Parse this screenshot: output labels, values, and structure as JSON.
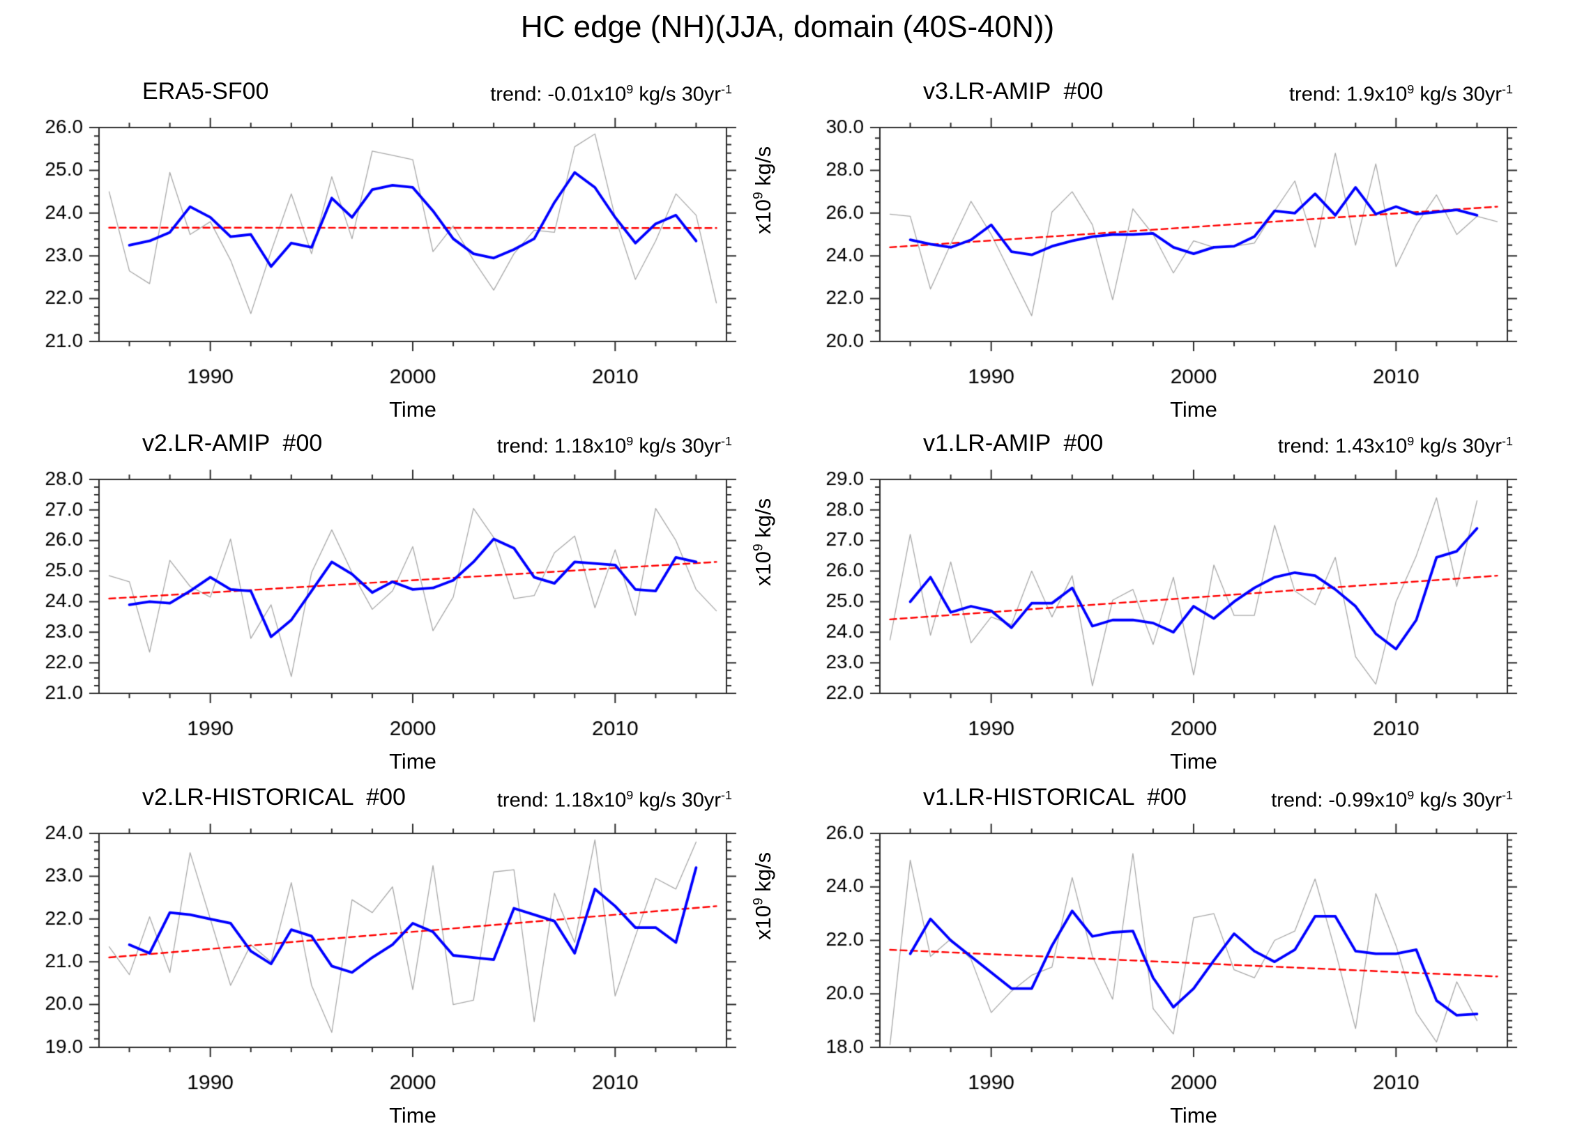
{
  "figure": {
    "title": "HC edge (NH)(JJA, domain (40S-40N))"
  },
  "colors": {
    "raw_line": "#a9a9a9",
    "smooth_line": "#0000ff",
    "trend_line": "#ff0000",
    "axis": "#2b2b2b",
    "text": "#000000",
    "background": "#ffffff"
  },
  "axis_shared": {
    "xlabel": "Time",
    "ylabel_parts": [
      {
        "t": "x10"
      },
      {
        "t": "9",
        "sup": true
      },
      {
        "t": " kg/s"
      }
    ],
    "xlim": [
      1984.5,
      2015.5
    ],
    "xticks": [
      1990,
      2000,
      2010
    ],
    "xtick_labels": [
      "1990",
      "2000",
      "2010"
    ],
    "xminor_step_years": 2
  },
  "years": [
    1985,
    1986,
    1987,
    1988,
    1989,
    1990,
    1991,
    1992,
    1993,
    1994,
    1995,
    1996,
    1997,
    1998,
    1999,
    2000,
    2001,
    2002,
    2003,
    2004,
    2005,
    2006,
    2007,
    2008,
    2009,
    2010,
    2011,
    2012,
    2013,
    2014,
    2015
  ],
  "chart_data": [
    {
      "type": "line",
      "title": "ERA5-SF00",
      "trend_value": "-0.01",
      "trend_parts": [
        {
          "t": "trend: -0.01x10"
        },
        {
          "t": "9",
          "sup": true
        },
        {
          "t": " kg/s 30yr"
        },
        {
          "t": "-1",
          "sup": true
        }
      ],
      "ylim": [
        21.0,
        26.0
      ],
      "ytick_labels": [
        "21.0",
        "22.0",
        "23.0",
        "24.0",
        "25.0",
        "26.0"
      ],
      "yticks": [
        21,
        22,
        23,
        24,
        25,
        26
      ],
      "yminor_step": 0.2,
      "raw": [
        24.5,
        22.65,
        22.35,
        24.95,
        23.5,
        23.8,
        22.9,
        21.65,
        23.1,
        24.45,
        23.05,
        24.85,
        23.4,
        25.45,
        25.35,
        25.25,
        23.1,
        23.7,
        22.9,
        22.2,
        23.05,
        23.6,
        23.55,
        25.55,
        25.85,
        23.9,
        22.45,
        23.35,
        24.45,
        23.95,
        21.9
      ],
      "smooth": [
        null,
        23.25,
        23.35,
        23.55,
        24.15,
        23.9,
        23.45,
        23.5,
        22.75,
        23.3,
        23.2,
        24.35,
        23.9,
        24.55,
        24.65,
        24.6,
        24.05,
        23.4,
        23.05,
        22.95,
        23.15,
        23.4,
        24.25,
        24.95,
        24.6,
        23.9,
        23.3,
        23.75,
        23.95,
        23.35,
        null
      ],
      "trend_start": 23.66,
      "trend_end": 23.65
    },
    {
      "type": "line",
      "title": "v3.LR-AMIP  #00",
      "trend_value": "1.9",
      "trend_parts": [
        {
          "t": "trend: 1.9x10"
        },
        {
          "t": "9",
          "sup": true
        },
        {
          "t": " kg/s 30yr"
        },
        {
          "t": "-1",
          "sup": true
        }
      ],
      "ylim": [
        20.0,
        30.0
      ],
      "ytick_labels": [
        "20.0",
        "22.0",
        "24.0",
        "26.0",
        "28.0",
        "30.0"
      ],
      "yticks": [
        20,
        22,
        24,
        26,
        28,
        30
      ],
      "yminor_step": 0.5,
      "raw": [
        25.95,
        25.85,
        22.45,
        24.55,
        26.55,
        25.0,
        23.1,
        21.2,
        26.05,
        27.0,
        25.45,
        21.95,
        26.2,
        25.0,
        23.2,
        24.7,
        24.4,
        24.45,
        24.6,
        26.1,
        27.5,
        24.4,
        28.8,
        24.5,
        28.3,
        23.5,
        25.45,
        26.85,
        25.0,
        25.85,
        25.6
      ],
      "smooth": [
        null,
        24.75,
        24.55,
        24.4,
        24.75,
        25.45,
        24.2,
        24.05,
        24.45,
        24.7,
        24.9,
        25.0,
        25.0,
        25.05,
        24.4,
        24.1,
        24.4,
        24.45,
        24.9,
        26.1,
        26.0,
        26.9,
        25.9,
        27.2,
        25.95,
        26.3,
        25.95,
        26.05,
        26.15,
        25.9,
        null
      ],
      "trend_start": 24.4,
      "trend_end": 26.3
    },
    {
      "type": "line",
      "title": "v2.LR-AMIP  #00",
      "trend_value": "1.18",
      "trend_parts": [
        {
          "t": "trend: 1.18x10"
        },
        {
          "t": "9",
          "sup": true
        },
        {
          "t": " kg/s 30yr"
        },
        {
          "t": "-1",
          "sup": true
        }
      ],
      "ylim": [
        21.0,
        28.0
      ],
      "ytick_labels": [
        "21.0",
        "22.0",
        "23.0",
        "24.0",
        "25.0",
        "26.0",
        "27.0",
        "28.0"
      ],
      "yticks": [
        21,
        22,
        23,
        24,
        25,
        26,
        27,
        28
      ],
      "yminor_step": 0.25,
      "raw": [
        24.85,
        24.65,
        22.35,
        25.35,
        24.5,
        24.15,
        26.05,
        22.8,
        23.9,
        21.55,
        24.95,
        26.35,
        24.95,
        23.75,
        24.35,
        25.8,
        23.05,
        24.15,
        27.05,
        26.1,
        24.1,
        24.2,
        25.6,
        26.15,
        23.8,
        25.7,
        23.55,
        27.05,
        26.0,
        24.4,
        23.7
      ],
      "smooth": [
        null,
        23.9,
        24.0,
        23.95,
        24.35,
        24.8,
        24.4,
        24.35,
        22.85,
        23.4,
        24.35,
        25.3,
        24.9,
        24.3,
        24.65,
        24.4,
        24.45,
        24.7,
        25.3,
        26.05,
        25.75,
        24.8,
        24.6,
        25.3,
        25.25,
        25.2,
        24.4,
        24.35,
        25.45,
        25.3,
        null
      ],
      "trend_start": 24.1,
      "trend_end": 25.3
    },
    {
      "type": "line",
      "title": "v1.LR-AMIP  #00",
      "trend_value": "1.43",
      "trend_parts": [
        {
          "t": "trend: 1.43x10"
        },
        {
          "t": "9",
          "sup": true
        },
        {
          "t": " kg/s 30yr"
        },
        {
          "t": "-1",
          "sup": true
        }
      ],
      "ylim": [
        22.0,
        29.0
      ],
      "ytick_labels": [
        "22.0",
        "23.0",
        "24.0",
        "25.0",
        "26.0",
        "27.0",
        "28.0",
        "29.0"
      ],
      "yticks": [
        22,
        23,
        24,
        25,
        26,
        27,
        28,
        29
      ],
      "yminor_step": 0.25,
      "raw": [
        23.75,
        27.2,
        23.9,
        26.3,
        23.65,
        24.5,
        24.25,
        26.0,
        24.5,
        25.85,
        22.25,
        25.05,
        25.4,
        23.6,
        25.8,
        22.6,
        26.2,
        24.55,
        24.55,
        27.5,
        25.35,
        24.9,
        26.45,
        23.2,
        22.3,
        25.0,
        26.5,
        28.4,
        25.5,
        28.3,
        null
      ],
      "smooth": [
        null,
        25.0,
        25.8,
        24.65,
        24.85,
        24.7,
        24.15,
        24.95,
        24.95,
        25.45,
        24.2,
        24.4,
        24.4,
        24.3,
        24.0,
        24.85,
        24.45,
        25.0,
        25.45,
        25.8,
        25.95,
        25.85,
        25.4,
        24.85,
        23.95,
        23.45,
        24.4,
        26.45,
        26.65,
        27.4,
        null
      ],
      "trend_start": 24.42,
      "trend_end": 25.85
    },
    {
      "type": "line",
      "title": "v2.LR-HISTORICAL  #00",
      "trend_value": "1.18",
      "trend_parts": [
        {
          "t": "trend: 1.18x10"
        },
        {
          "t": "9",
          "sup": true
        },
        {
          "t": " kg/s 30yr"
        },
        {
          "t": "-1",
          "sup": true
        }
      ],
      "ylim": [
        19.0,
        24.0
      ],
      "ytick_labels": [
        "19.0",
        "20.0",
        "21.0",
        "22.0",
        "23.0",
        "24.0"
      ],
      "yticks": [
        19,
        20,
        21,
        22,
        23,
        24
      ],
      "yminor_step": 0.2,
      "raw": [
        21.35,
        20.7,
        22.05,
        20.75,
        23.55,
        22.0,
        20.45,
        21.4,
        21.0,
        22.85,
        20.45,
        19.35,
        22.45,
        22.15,
        22.75,
        20.35,
        23.25,
        20.0,
        20.1,
        23.1,
        23.15,
        19.6,
        22.6,
        21.45,
        23.85,
        20.2,
        21.6,
        22.95,
        22.7,
        23.8,
        null
      ],
      "smooth": [
        null,
        21.4,
        21.2,
        22.15,
        22.1,
        22.0,
        21.9,
        21.25,
        20.95,
        21.75,
        21.6,
        20.9,
        20.75,
        21.1,
        21.4,
        21.9,
        21.7,
        21.15,
        21.1,
        21.05,
        22.25,
        22.1,
        21.95,
        21.2,
        22.7,
        22.3,
        21.8,
        21.8,
        21.45,
        23.2,
        null
      ],
      "trend_start": 21.1,
      "trend_end": 22.3
    },
    {
      "type": "line",
      "title": "v1.LR-HISTORICAL  #00",
      "trend_value": "-0.99",
      "trend_parts": [
        {
          "t": "trend: -0.99x10"
        },
        {
          "t": "9",
          "sup": true
        },
        {
          "t": " kg/s 30yr"
        },
        {
          "t": "-1",
          "sup": true
        }
      ],
      "ylim": [
        18.0,
        26.0
      ],
      "ytick_labels": [
        "18.0",
        "20.0",
        "22.0",
        "24.0",
        "26.0"
      ],
      "yticks": [
        18,
        20,
        22,
        24,
        26
      ],
      "yminor_step": 0.25,
      "raw": [
        18.1,
        25.0,
        21.4,
        22.05,
        21.3,
        19.3,
        20.1,
        20.7,
        21.0,
        24.35,
        21.4,
        19.8,
        25.25,
        19.45,
        18.5,
        22.85,
        23.0,
        20.9,
        20.6,
        22.0,
        22.35,
        24.3,
        21.6,
        18.7,
        23.75,
        21.8,
        19.3,
        18.2,
        20.45,
        19.0,
        null
      ],
      "smooth": [
        null,
        21.5,
        22.8,
        22.0,
        21.4,
        20.8,
        20.2,
        20.2,
        21.8,
        23.1,
        22.15,
        22.3,
        22.35,
        20.6,
        19.5,
        20.2,
        21.25,
        22.25,
        21.6,
        21.2,
        21.65,
        22.9,
        22.9,
        21.6,
        21.5,
        21.5,
        21.65,
        19.75,
        19.2,
        19.25,
        null
      ],
      "trend_start": 21.65,
      "trend_end": 20.65
    }
  ]
}
